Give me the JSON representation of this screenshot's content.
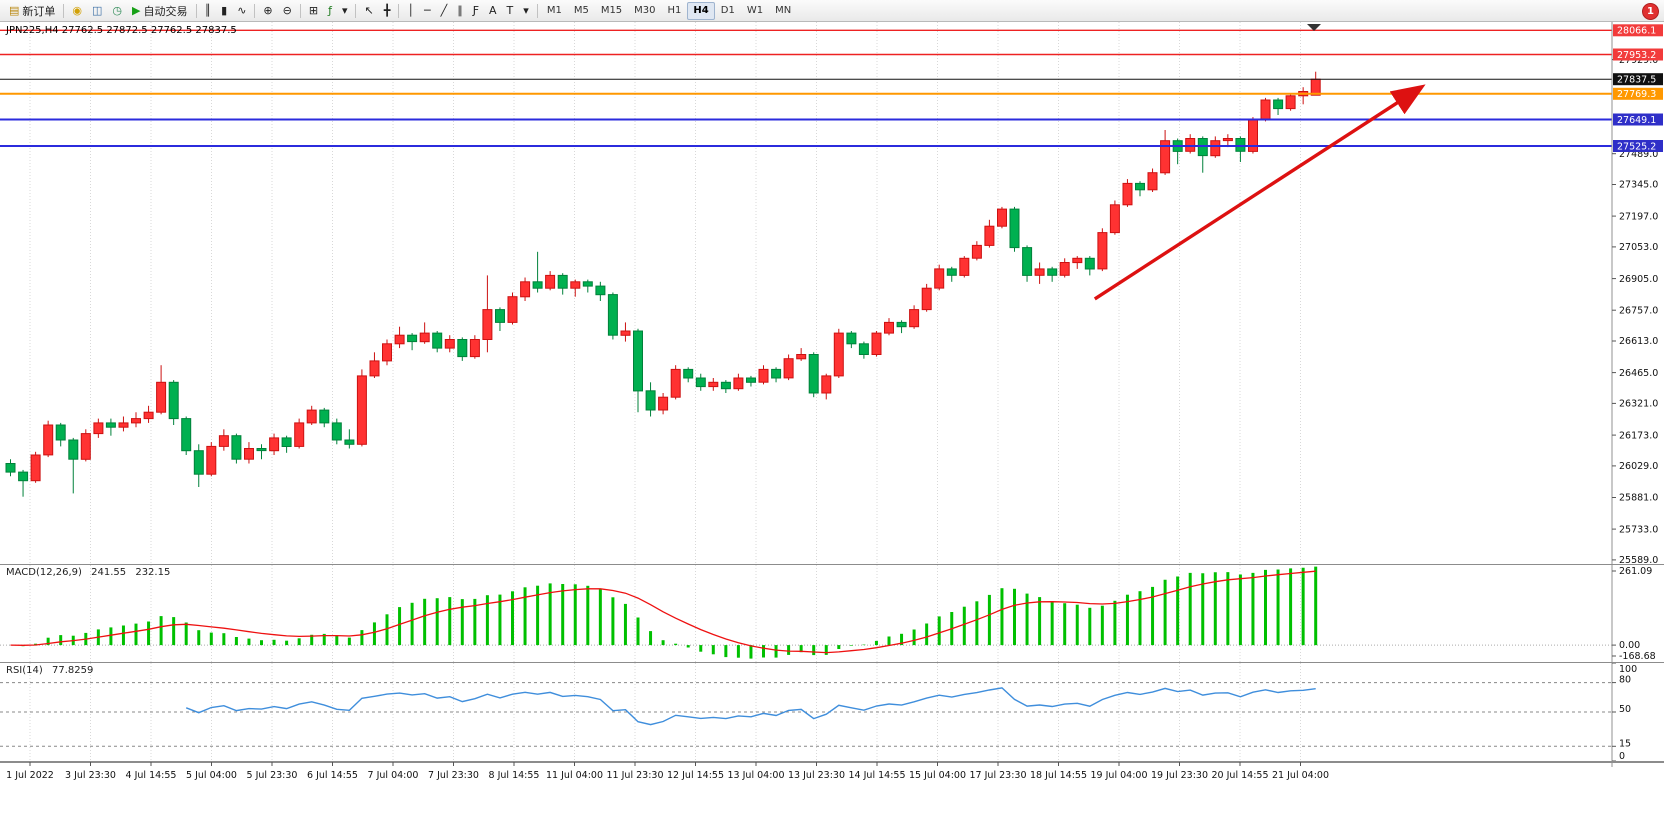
{
  "toolbar": {
    "notification_count": "1",
    "active_timeframe": "H4",
    "timeframes": [
      "M1",
      "M5",
      "M15",
      "M30",
      "H1",
      "H4",
      "D1",
      "W1",
      "MN"
    ],
    "buttons": [
      {
        "name": "new-order-button",
        "icon": "new-order-icon",
        "glyph": "▤",
        "color": "#b8860b",
        "label": "新订单"
      },
      {
        "sep": true
      },
      {
        "name": "alerts-button",
        "icon": "megaphone-icon",
        "glyph": "◉",
        "color": "#d2a106"
      },
      {
        "name": "new-chart-button",
        "icon": "chart-window-icon",
        "glyph": "◫",
        "color": "#3a6ea5"
      },
      {
        "name": "market-watch-button",
        "icon": "clock-icon",
        "glyph": "◷",
        "color": "#2e8b57"
      },
      {
        "name": "autotrading-button",
        "icon": "play-icon",
        "glyph": "▶",
        "color": "#16a016",
        "label": "自动交易"
      },
      {
        "sep": true
      },
      {
        "name": "bar-chart-button",
        "icon": "bar-chart-icon",
        "glyph": "║"
      },
      {
        "name": "candlestick-chart-button",
        "icon": "candlestick-icon",
        "glyph": "▮"
      },
      {
        "name": "line-chart-button",
        "icon": "line-chart-icon",
        "glyph": "∿"
      },
      {
        "sep": true
      },
      {
        "name": "zoom-in-button",
        "icon": "zoom-in-icon",
        "glyph": "⊕"
      },
      {
        "name": "zoom-out-button",
        "icon": "zoom-out-icon",
        "glyph": "⊖"
      },
      {
        "sep": true
      },
      {
        "name": "tile-windows-button",
        "icon": "tile-windows-icon",
        "glyph": "⊞"
      },
      {
        "name": "indicators-button",
        "icon": "indicators-icon",
        "glyph": "ƒ",
        "color": "#1d7a1d"
      },
      {
        "name": "indicators-dropdown-button",
        "icon": "chevron-down-icon",
        "glyph": "▾"
      },
      {
        "sep": true
      },
      {
        "name": "cursor-button",
        "icon": "cursor-icon",
        "glyph": "↖"
      },
      {
        "name": "crosshair-button",
        "icon": "crosshair-icon",
        "glyph": "╋"
      },
      {
        "sep": true
      },
      {
        "name": "vertical-line-button",
        "icon": "vertical-line-icon",
        "glyph": "│"
      },
      {
        "name": "horizontal-line-button",
        "icon": "horizontal-line-icon",
        "glyph": "─"
      },
      {
        "name": "trendline-button",
        "icon": "trendline-icon",
        "glyph": "╱"
      },
      {
        "name": "channel-button",
        "icon": "channel-icon",
        "glyph": "∥"
      },
      {
        "name": "fibonacci-button",
        "icon": "fibonacci-icon",
        "glyph": "Ƒ"
      },
      {
        "name": "text-button",
        "icon": "text-icon",
        "glyph": "A"
      },
      {
        "name": "text-label-button",
        "icon": "text-label-icon",
        "glyph": "T"
      },
      {
        "name": "arrows-list-button",
        "icon": "chevron-down-icon",
        "glyph": "▾"
      },
      {
        "sep": true
      }
    ]
  },
  "chart": {
    "title": "JPN225,H4 27762.5 27872.5 27762.5 27837.5"
  },
  "chart_data": {
    "type": "candlestick",
    "symbol": "JPN225",
    "timeframe": "H4",
    "current": {
      "open": 27762.5,
      "high": 27872.5,
      "low": 27762.5,
      "close": 27837.5
    },
    "ylim": [
      25570,
      28105
    ],
    "grid": true,
    "colors": {
      "bull": "#ff3232",
      "bull_stroke": "#cc1111",
      "bear": "#00b050",
      "bear_stroke": "#00813a",
      "macd_hist": "#00c000",
      "macd_signal": "#ee1111",
      "rsi_line": "#3f8edc",
      "grid": "#d8d8d8",
      "axis_text": "#111111"
    },
    "y_ticks": [
      27929.0,
      27489.0,
      27345.0,
      27197.0,
      27053.0,
      26905.0,
      26757.0,
      26613.0,
      26465.0,
      26321.0,
      26173.0,
      26029.0,
      25881.0,
      25733.0,
      25589.0
    ],
    "levels": [
      {
        "price": 28066.1,
        "color": "#ee2222",
        "width": 1.4,
        "badge": "#f23b3b"
      },
      {
        "price": 27953.2,
        "color": "#ee2222",
        "width": 1.4,
        "badge": "#f23b3b"
      },
      {
        "price": 27837.5,
        "color": "#111111",
        "width": 1,
        "badge": "#111111"
      },
      {
        "price": 27769.3,
        "color": "#ff9800",
        "width": 2,
        "badge": "#ff9800"
      },
      {
        "price": 27649.1,
        "color": "#2b2bdd",
        "width": 2,
        "badge": "#2f2fc8"
      },
      {
        "price": 27525.2,
        "color": "#2b2bdd",
        "width": 2,
        "badge": "#2f2fc8"
      }
    ],
    "x_labels": [
      "1 Jul 2022",
      "3 Jul 23:30",
      "4 Jul 14:55",
      "5 Jul 04:00",
      "5 Jul 23:30",
      "6 Jul 14:55",
      "7 Jul 04:00",
      "7 Jul 23:30",
      "8 Jul 14:55",
      "11 Jul 04:00",
      "11 Jul 23:30",
      "12 Jul 14:55",
      "13 Jul 04:00",
      "13 Jul 23:30",
      "14 Jul 14:55",
      "15 Jul 04:00",
      "17 Jul 23:30",
      "18 Jul 14:55",
      "19 Jul 04:00",
      "19 Jul 23:30",
      "20 Jul 14:55",
      "21 Jul 04:00"
    ],
    "ohlc": [
      [
        26040,
        26060,
        25980,
        26000
      ],
      [
        26000,
        26010,
        25885,
        25960
      ],
      [
        25960,
        26095,
        25950,
        26080
      ],
      [
        26080,
        26240,
        26070,
        26220
      ],
      [
        26220,
        26230,
        26120,
        26150
      ],
      [
        26150,
        26160,
        25900,
        26060
      ],
      [
        26060,
        26200,
        26050,
        26180
      ],
      [
        26180,
        26250,
        26160,
        26230
      ],
      [
        26230,
        26250,
        26170,
        26210
      ],
      [
        26210,
        26260,
        26190,
        26230
      ],
      [
        26230,
        26280,
        26210,
        26250
      ],
      [
        26250,
        26310,
        26230,
        26280
      ],
      [
        26280,
        26500,
        26270,
        26420
      ],
      [
        26420,
        26430,
        26220,
        26250
      ],
      [
        26250,
        26260,
        26080,
        26100
      ],
      [
        26100,
        26130,
        25930,
        25990
      ],
      [
        25990,
        26140,
        25980,
        26120
      ],
      [
        26120,
        26200,
        26100,
        26170
      ],
      [
        26170,
        26180,
        26040,
        26060
      ],
      [
        26060,
        26140,
        26040,
        26110
      ],
      [
        26110,
        26130,
        26060,
        26100
      ],
      [
        26100,
        26180,
        26080,
        26160
      ],
      [
        26160,
        26170,
        26090,
        26120
      ],
      [
        26120,
        26250,
        26110,
        26230
      ],
      [
        26230,
        26310,
        26220,
        26290
      ],
      [
        26290,
        26300,
        26210,
        26230
      ],
      [
        26230,
        26250,
        26130,
        26150
      ],
      [
        26150,
        26200,
        26110,
        26130
      ],
      [
        26130,
        26480,
        26120,
        26450
      ],
      [
        26450,
        26560,
        26440,
        26520
      ],
      [
        26520,
        26620,
        26500,
        26600
      ],
      [
        26600,
        26680,
        26580,
        26640
      ],
      [
        26640,
        26650,
        26570,
        26610
      ],
      [
        26610,
        26700,
        26600,
        26650
      ],
      [
        26650,
        26660,
        26560,
        26580
      ],
      [
        26580,
        26640,
        26560,
        26620
      ],
      [
        26620,
        26630,
        26520,
        26540
      ],
      [
        26540,
        26640,
        26530,
        26620
      ],
      [
        26620,
        26920,
        26560,
        26760
      ],
      [
        26760,
        26770,
        26660,
        26700
      ],
      [
        26700,
        26840,
        26690,
        26820
      ],
      [
        26820,
        26910,
        26800,
        26890
      ],
      [
        26890,
        27030,
        26840,
        26860
      ],
      [
        26860,
        26940,
        26850,
        26920
      ],
      [
        26920,
        26930,
        26830,
        26860
      ],
      [
        26860,
        26900,
        26820,
        26890
      ],
      [
        26890,
        26900,
        26840,
        26870
      ],
      [
        26870,
        26890,
        26800,
        26830
      ],
      [
        26830,
        26840,
        26620,
        26640
      ],
      [
        26640,
        26700,
        26610,
        26660
      ],
      [
        26660,
        26670,
        26280,
        26380
      ],
      [
        26380,
        26420,
        26260,
        26290
      ],
      [
        26290,
        26370,
        26270,
        26350
      ],
      [
        26350,
        26500,
        26340,
        26480
      ],
      [
        26480,
        26490,
        26420,
        26440
      ],
      [
        26440,
        26460,
        26380,
        26400
      ],
      [
        26400,
        26440,
        26380,
        26420
      ],
      [
        26420,
        26430,
        26370,
        26390
      ],
      [
        26390,
        26460,
        26380,
        26440
      ],
      [
        26440,
        26450,
        26400,
        26420
      ],
      [
        26420,
        26500,
        26410,
        26480
      ],
      [
        26480,
        26490,
        26420,
        26440
      ],
      [
        26440,
        26550,
        26430,
        26530
      ],
      [
        26530,
        26580,
        26520,
        26550
      ],
      [
        26550,
        26560,
        26350,
        26370
      ],
      [
        26370,
        26460,
        26340,
        26450
      ],
      [
        26450,
        26670,
        26440,
        26650
      ],
      [
        26650,
        26660,
        26580,
        26600
      ],
      [
        26600,
        26610,
        26530,
        26550
      ],
      [
        26550,
        26660,
        26540,
        26650
      ],
      [
        26650,
        26720,
        26640,
        26700
      ],
      [
        26700,
        26710,
        26650,
        26680
      ],
      [
        26680,
        26780,
        26670,
        26760
      ],
      [
        26760,
        26880,
        26750,
        26860
      ],
      [
        26860,
        26970,
        26850,
        26950
      ],
      [
        26950,
        26960,
        26890,
        26920
      ],
      [
        26920,
        27010,
        26910,
        27000
      ],
      [
        27000,
        27080,
        26990,
        27060
      ],
      [
        27060,
        27180,
        27050,
        27150
      ],
      [
        27150,
        27240,
        27140,
        27230
      ],
      [
        27230,
        27240,
        27030,
        27050
      ],
      [
        27050,
        27060,
        26890,
        26920
      ],
      [
        26920,
        26980,
        26880,
        26950
      ],
      [
        26950,
        26960,
        26890,
        26920
      ],
      [
        26920,
        27000,
        26910,
        26980
      ],
      [
        26980,
        27010,
        26950,
        27000
      ],
      [
        27000,
        27010,
        26920,
        26950
      ],
      [
        26950,
        27140,
        26940,
        27120
      ],
      [
        27120,
        27270,
        27110,
        27250
      ],
      [
        27250,
        27370,
        27240,
        27350
      ],
      [
        27350,
        27360,
        27290,
        27320
      ],
      [
        27320,
        27420,
        27310,
        27400
      ],
      [
        27400,
        27600,
        27390,
        27550
      ],
      [
        27550,
        27560,
        27440,
        27500
      ],
      [
        27500,
        27580,
        27490,
        27560
      ],
      [
        27560,
        27570,
        27400,
        27480
      ],
      [
        27480,
        27570,
        27470,
        27550
      ],
      [
        27550,
        27580,
        27520,
        27560
      ],
      [
        27560,
        27570,
        27450,
        27500
      ],
      [
        27500,
        27660,
        27490,
        27650
      ],
      [
        27650,
        27750,
        27640,
        27740
      ],
      [
        27740,
        27750,
        27670,
        27700
      ],
      [
        27700,
        27770,
        27690,
        27760
      ],
      [
        27760,
        27800,
        27720,
        27780
      ],
      [
        27762.5,
        27872.5,
        27762.5,
        27837.5
      ]
    ],
    "indicators": {
      "macd": {
        "label": "MACD(12,26,9)",
        "value_main": "241.55",
        "value_signal": "232.15",
        "fast": 12,
        "slow": 26,
        "signal": 9,
        "scale_labels": [
          "261.09",
          "0.00",
          "-168.68"
        ]
      },
      "rsi": {
        "label": "RSI(14)",
        "value": "77.8259",
        "period": 14,
        "levels": [
          80,
          50,
          15
        ],
        "scale_labels": [
          "100",
          "80",
          "50",
          "15",
          "0"
        ]
      }
    },
    "annotations": {
      "trend_arrow": {
        "from_bar": 86.4,
        "from_price": 26810,
        "to_bar": 112.3,
        "to_price": 27796,
        "color": "#dd1111"
      },
      "shift_marker": true
    }
  }
}
